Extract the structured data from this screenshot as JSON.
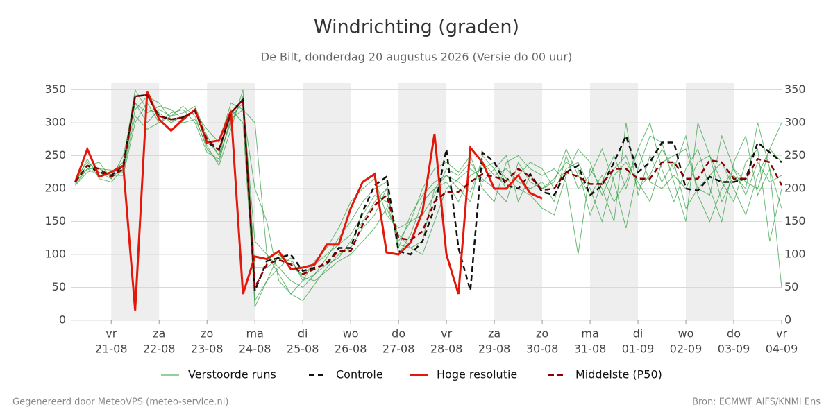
{
  "chart_data": {
    "type": "line",
    "title": "Windrichting (graden)",
    "subtitle": "De Bilt, donderdag 20 augustus 2026 (Versie do 00 uur)",
    "footer_left": "Gegenereerd door MeteoVPS (meteo-service.nl)",
    "footer_right": "Bron: ECMWF AIFS/KNMI Ens",
    "x": [
      20.25,
      20.5,
      20.75,
      21,
      21.25,
      21.5,
      21.75,
      22,
      22.25,
      22.5,
      22.75,
      23,
      23.25,
      23.5,
      23.75,
      24,
      24.25,
      24.5,
      24.75,
      25,
      25.25,
      25.5,
      25.75,
      26,
      26.25,
      26.5,
      26.75,
      27,
      27.25,
      27.5,
      27.75,
      28,
      28.25,
      28.5,
      28.75,
      29,
      29.25,
      29.5,
      29.75,
      30,
      30.25,
      30.5,
      30.75,
      31,
      31.25,
      31.5,
      31.75,
      32,
      32.25,
      32.5,
      32.75,
      33,
      33.25,
      33.5,
      33.75,
      34,
      34.25,
      34.5,
      34.75,
      35
    ],
    "xlim": [
      20.17,
      35
    ],
    "xticks": [
      {
        "value": 21,
        "label": "21-08",
        "weekday": "vr"
      },
      {
        "value": 22,
        "label": "22-08",
        "weekday": "za"
      },
      {
        "value": 23,
        "label": "23-08",
        "weekday": "zo"
      },
      {
        "value": 24,
        "label": "24-08",
        "weekday": "ma"
      },
      {
        "value": 25,
        "label": "25-08",
        "weekday": "di"
      },
      {
        "value": 26,
        "label": "26-08",
        "weekday": "wo"
      },
      {
        "value": 27,
        "label": "27-08",
        "weekday": "do"
      },
      {
        "value": 28,
        "label": "28-08",
        "weekday": "vr"
      },
      {
        "value": 29,
        "label": "29-08",
        "weekday": "za"
      },
      {
        "value": 30,
        "label": "30-08",
        "weekday": "zo"
      },
      {
        "value": 31,
        "label": "31-08",
        "weekday": "ma"
      },
      {
        "value": 32,
        "label": "01-09",
        "weekday": "di"
      },
      {
        "value": 33,
        "label": "02-09",
        "weekday": "wo"
      },
      {
        "value": 34,
        "label": "03-09",
        "weekday": "do"
      },
      {
        "value": 35,
        "label": "04-09",
        "weekday": "vr"
      }
    ],
    "ylim": [
      0,
      360
    ],
    "yticks": [
      0,
      50,
      100,
      150,
      200,
      250,
      300,
      350
    ],
    "grid": true,
    "ensemble": {
      "name": "Verstoorde runs",
      "color": "#2a9d3a",
      "members": [
        [
          215,
          240,
          225,
          215,
          250,
          330,
          300,
          320,
          310,
          315,
          325,
          280,
          250,
          300,
          340,
          20,
          60,
          80,
          95,
          60,
          70,
          85,
          95,
          120,
          150,
          180,
          200,
          115,
          110,
          100,
          150,
          200,
          215,
          230,
          215,
          200,
          180,
          240,
          210,
          200,
          215,
          240,
          230,
          160,
          210,
          250,
          200,
          260,
          300,
          230,
          180,
          230,
          260,
          200,
          150,
          240,
          280,
          190,
          230,
          170
        ],
        [
          205,
          225,
          230,
          220,
          220,
          300,
          330,
          300,
          310,
          325,
          310,
          260,
          240,
          310,
          330,
          120,
          100,
          80,
          60,
          50,
          70,
          95,
          125,
          150,
          180,
          200,
          210,
          100,
          130,
          180,
          200,
          220,
          210,
          195,
          240,
          220,
          230,
          210,
          200,
          210,
          180,
          250,
          200,
          220,
          260,
          210,
          140,
          230,
          280,
          270,
          210,
          150,
          300,
          250,
          210,
          180,
          240,
          260,
          120,
          200
        ],
        [
          210,
          230,
          220,
          225,
          240,
          350,
          320,
          315,
          300,
          310,
          315,
          290,
          270,
          330,
          320,
          300,
          100,
          70,
          40,
          60,
          90,
          110,
          140,
          180,
          200,
          215,
          160,
          140,
          150,
          200,
          230,
          240,
          225,
          250,
          200,
          180,
          240,
          250,
          230,
          220,
          230,
          210,
          100,
          230,
          200,
          150,
          300,
          190,
          250,
          210,
          240,
          170,
          200,
          190,
          280,
          230,
          210,
          200,
          260,
          240
        ],
        [
          208,
          245,
          215,
          210,
          230,
          320,
          340,
          330,
          305,
          300,
          305,
          265,
          235,
          290,
          350,
          80,
          80,
          95,
          90,
          65,
          60,
          75,
          90,
          100,
          120,
          140,
          170,
          130,
          110,
          120,
          200,
          210,
          180,
          220,
          230,
          240,
          215,
          200,
          190,
          170,
          160,
          220,
          260,
          240,
          190,
          230,
          250,
          200,
          220,
          260,
          230,
          280,
          190,
          150,
          200,
          230,
          190,
          240,
          210,
          220
        ],
        [
          212,
          235,
          240,
          215,
          235,
          330,
          315,
          325,
          320,
          305,
          320,
          275,
          250,
          320,
          300,
          30,
          60,
          100,
          80,
          70,
          85,
          100,
          115,
          130,
          160,
          190,
          180,
          120,
          150,
          160,
          190,
          230,
          220,
          240,
          210,
          230,
          250,
          180,
          220,
          200,
          210,
          260,
          220,
          190,
          220,
          180,
          210,
          260,
          210,
          200,
          220,
          200,
          240,
          250,
          180,
          220,
          200,
          300,
          230,
          50
        ],
        [
          206,
          230,
          230,
          228,
          225,
          310,
          290,
          300,
          315,
          320,
          300,
          255,
          245,
          305,
          320,
          200,
          150,
          60,
          40,
          30,
          55,
          80,
          100,
          110,
          140,
          160,
          200,
          110,
          160,
          190,
          210,
          220,
          200,
          180,
          250,
          230,
          200,
          220,
          240,
          230,
          200,
          230,
          240,
          200,
          150,
          220,
          240,
          210,
          180,
          240,
          250,
          260,
          200,
          220,
          240,
          200,
          160,
          220,
          260,
          300
        ]
      ]
    },
    "series": [
      {
        "name": "Controle",
        "color": "#111111",
        "dash": true,
        "values": [
          210,
          235,
          225,
          220,
          235,
          340,
          342,
          310,
          305,
          308,
          318,
          270,
          260,
          315,
          335,
          45,
          90,
          95,
          100,
          75,
          80,
          85,
          110,
          110,
          165,
          205,
          218,
          105,
          100,
          120,
          170,
          260,
          110,
          45,
          255,
          240,
          205,
          200,
          222,
          195,
          190,
          225,
          235,
          190,
          205,
          240,
          280,
          225,
          240,
          270,
          270,
          200,
          197,
          218,
          210,
          210,
          215,
          270,
          255,
          240
        ]
      },
      {
        "name": "Hoge resolutie",
        "color": "#e3170a",
        "dash": false,
        "values": [
          210,
          260,
          218,
          225,
          235,
          15,
          348,
          305,
          288,
          305,
          320,
          270,
          273,
          318,
          40,
          97,
          93,
          105,
          78,
          80,
          85,
          115,
          115,
          170,
          210,
          222,
          103,
          100,
          118,
          165,
          283,
          100,
          40,
          262,
          240,
          200,
          200,
          220,
          193,
          185,
          null,
          null,
          null,
          null,
          null,
          null,
          null,
          null,
          null,
          null,
          null,
          null,
          null,
          null,
          null,
          null,
          null,
          null,
          null,
          null
        ]
      },
      {
        "name": "Middelste (P50)",
        "color": "#8b0000",
        "dash": true,
        "values": [
          210,
          235,
          230,
          218,
          230,
          340,
          342,
          310,
          305,
          308,
          318,
          275,
          258,
          315,
          335,
          50,
          85,
          92,
          85,
          70,
          78,
          88,
          105,
          105,
          145,
          175,
          190,
          125,
          122,
          135,
          180,
          195,
          195,
          210,
          222,
          218,
          212,
          230,
          218,
          198,
          200,
          225,
          218,
          207,
          207,
          230,
          230,
          215,
          215,
          240,
          240,
          215,
          215,
          243,
          240,
          215,
          215,
          245,
          240,
          205
        ]
      }
    ]
  }
}
